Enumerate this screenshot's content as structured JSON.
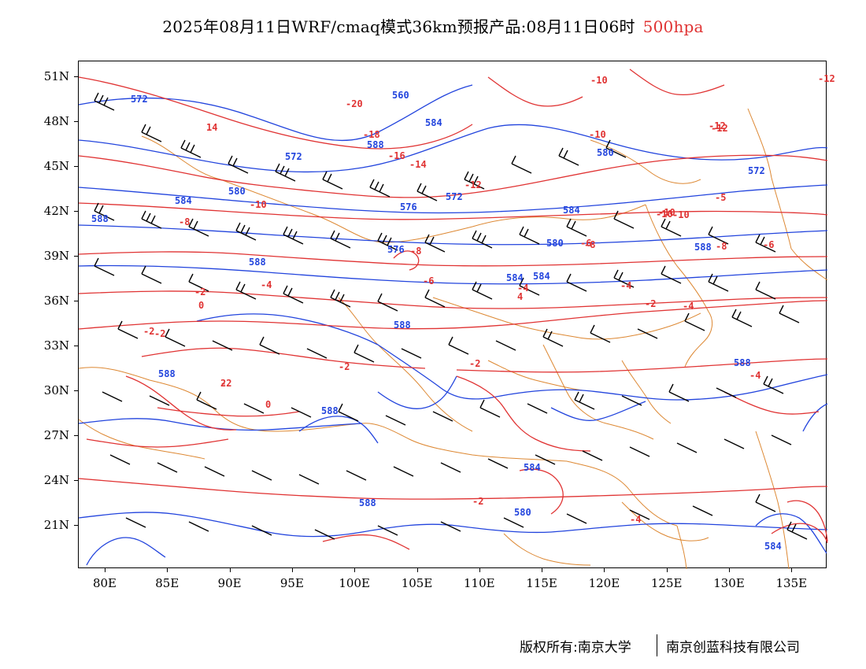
{
  "header": {
    "title": "2025年08月11日WRF/cmaq模式36km预报产品:08月11日06时",
    "level": "500hpa",
    "level_color": "#e03333"
  },
  "footer": {
    "copyright": "版权所有:南京大学",
    "company": "南京创蓝科技有限公司"
  },
  "map": {
    "lat_ticks": [
      "51N",
      "48N",
      "45N",
      "42N",
      "39N",
      "36N",
      "33N",
      "30N",
      "27N",
      "24N",
      "21N"
    ],
    "lon_ticks": [
      "80E",
      "85E",
      "90E",
      "95E",
      "100E",
      "105E",
      "110E",
      "115E",
      "120E",
      "125E",
      "130E",
      "135E"
    ],
    "height_contour_color": "#2244dd",
    "temperature_contour_color": "#e03333",
    "boundary_color": "#dd8833",
    "wind_barb_color": "#000000",
    "height_labels": [
      "572",
      "560",
      "584",
      "588",
      "572",
      "580",
      "584",
      "588",
      "572",
      "576",
      "580",
      "576",
      "584",
      "580",
      "584",
      "588",
      "588",
      "584",
      "588",
      "588",
      "588",
      "584",
      "588",
      "580",
      "572",
      "588",
      "584"
    ],
    "temperature_labels": [
      "-20",
      "14",
      "-18",
      "-16",
      "-14",
      "-12",
      "-12",
      "-10",
      "-10",
      "-12",
      "-10",
      "-10",
      "-8",
      "-10",
      "-10",
      "-8",
      "-8",
      "-8",
      "-6",
      "-6",
      "-6",
      "-4",
      "-4",
      "-2",
      "0",
      "-2",
      "-4",
      "-2",
      "-2",
      "-2",
      "-4",
      "-2",
      "-2",
      "0",
      "2",
      "4",
      "-4",
      "-2",
      "-4",
      "-12",
      "-5"
    ]
  }
}
